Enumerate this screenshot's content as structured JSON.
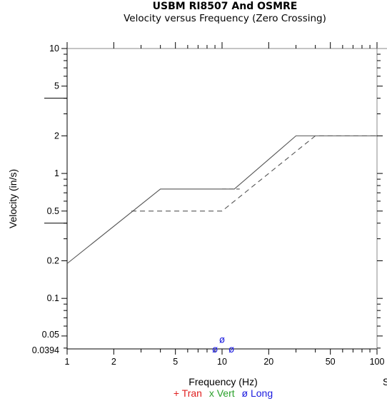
{
  "chart_data": {
    "type": "line",
    "title": "USBM RI8507 And OSMRE",
    "subtitle": "Velocity versus Frequency (Zero Crossing)",
    "xlabel": "Frequency (Hz)",
    "ylabel": "Velocity (in/s)",
    "xscale": "log",
    "yscale": "log",
    "xlim": [
      1,
      100
    ],
    "ylim": [
      0.0394,
      10
    ],
    "x_tick_labels": [
      "1",
      "2",
      "5",
      "10",
      "20",
      "50",
      "100"
    ],
    "x_ticks": [
      1,
      2,
      5,
      10,
      20,
      50,
      100
    ],
    "y_tick_labels": [
      "10",
      "5",
      "2",
      "1",
      "0.5",
      "0.2",
      "0.1",
      "0.05",
      "0.0394"
    ],
    "y_ticks": [
      10,
      5,
      2,
      1,
      0.5,
      0.2,
      0.1,
      0.05,
      0.0394
    ],
    "series": [
      {
        "style": "solid",
        "points": [
          [
            1,
            0.19
          ],
          [
            4,
            0.75
          ],
          [
            12,
            0.75
          ],
          [
            30,
            2
          ],
          [
            100,
            2
          ]
        ]
      },
      {
        "style": "dashed",
        "points": [
          [
            2.6,
            0.5
          ],
          [
            10,
            0.5
          ],
          [
            40,
            2
          ],
          [
            100,
            2
          ]
        ]
      },
      {
        "style": "dashed-short",
        "points": [
          [
            10,
            0.75
          ],
          [
            13,
            0.75
          ]
        ]
      }
    ],
    "markers": [
      {
        "symbol": "ø",
        "series": "Long",
        "x": 10.0,
        "y": 0.047
      },
      {
        "symbol": "ø",
        "series": "Long",
        "x": 9.0,
        "y": 0.0394
      },
      {
        "symbol": "ø",
        "series": "Long",
        "x": 11.5,
        "y": 0.0394
      }
    ],
    "legend": [
      {
        "label": "+ Tran",
        "color": "#e02020"
      },
      {
        "label": "x Vert",
        "color": "#2aa02a"
      },
      {
        "label": "ø Long",
        "color": "#1a1adf"
      }
    ],
    "grid": false
  },
  "right_edge_text": "S"
}
